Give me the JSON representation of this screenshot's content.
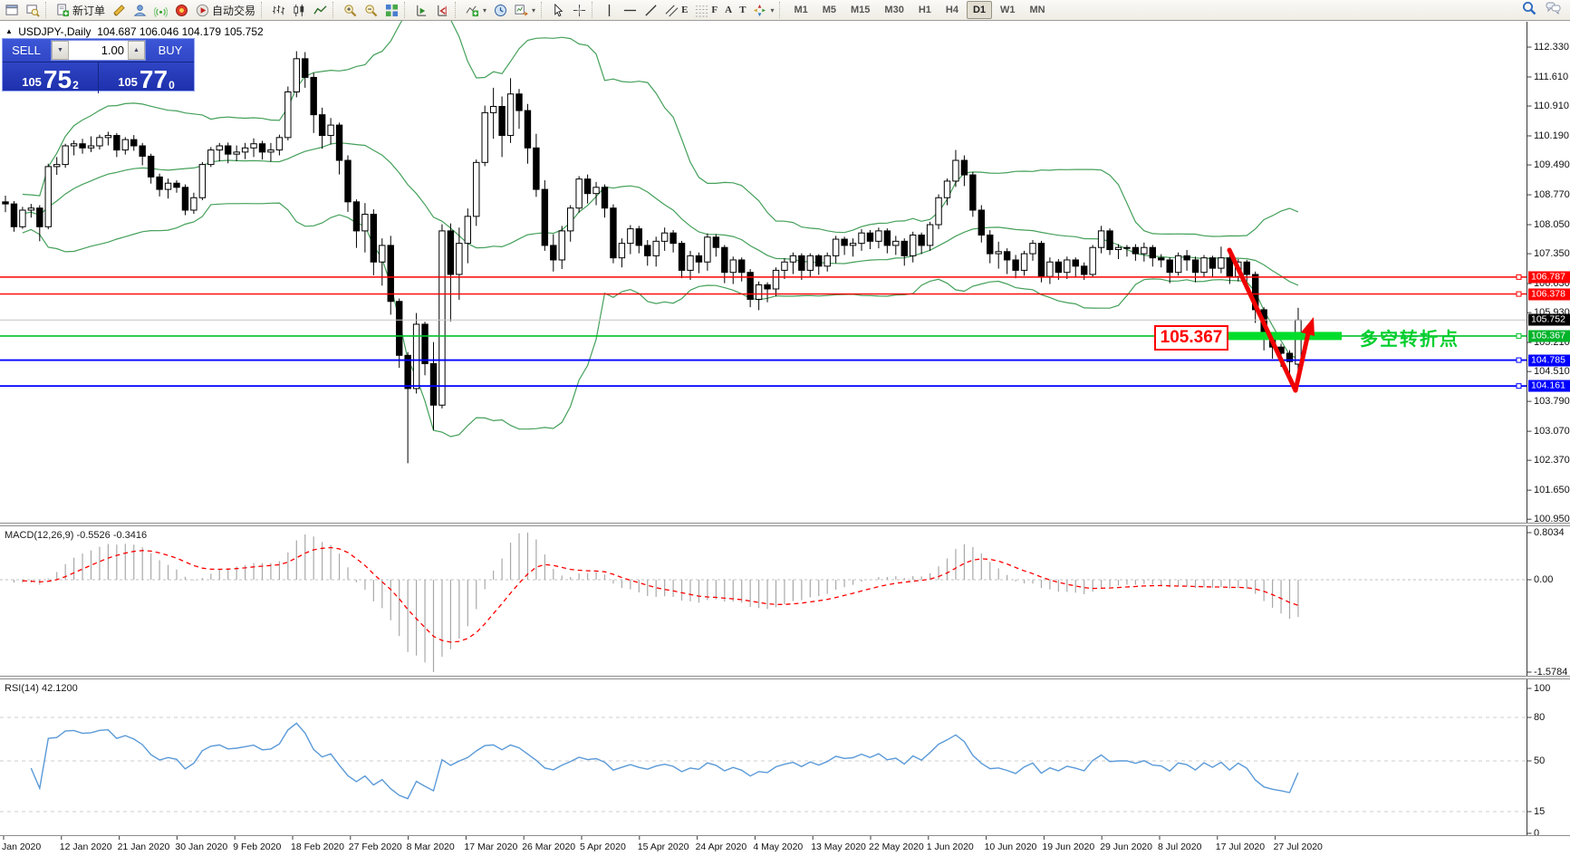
{
  "toolbar": {
    "new_order_label": "新订单",
    "autotrade_label": "自动交易",
    "glyphs": {
      "text": "A",
      "label": "T",
      "channel": "E",
      "fibo": "F"
    },
    "timeframes": [
      "M1",
      "M5",
      "M15",
      "M30",
      "H1",
      "H4",
      "D1",
      "W1",
      "MN"
    ],
    "active_timeframe": "D1"
  },
  "symbol_line": {
    "symbol": "USDJPY-,Daily",
    "ohlc": "104.687 106.046 104.179 105.752"
  },
  "trade_panel": {
    "sell_label": "SELL",
    "buy_label": "BUY",
    "volume": "1.00",
    "sell_prefix": "105",
    "sell_big": "75",
    "sell_sup": "2",
    "buy_prefix": "105",
    "buy_big": "77",
    "buy_sup": "0"
  },
  "annotations": {
    "price_box": "105.367",
    "note_text": "多空转折点"
  },
  "indicator_labels": {
    "macd": "MACD(12,26,9) -0.5526 -0.3416",
    "rsi": "RSI(14) 42.1200"
  },
  "chart_data": {
    "type": "candlestick",
    "symbol": "USDJPY",
    "timeframe": "Daily",
    "current_bar": {
      "open": 104.687,
      "high": 106.046,
      "low": 104.179,
      "close": 105.752
    },
    "price_axis_ticks": [
      "112.330",
      "111.610",
      "110.910",
      "110.190",
      "109.490",
      "108.770",
      "108.050",
      "107.350",
      "106.630",
      "105.930",
      "105.210",
      "104.510",
      "103.790",
      "103.070",
      "102.370",
      "101.650",
      "100.950"
    ],
    "last_price": 105.752,
    "hlines": [
      {
        "price": 106.787,
        "color": "#ff0000",
        "label": "106.787",
        "width": 1.4
      },
      {
        "price": 106.378,
        "color": "#ff0000",
        "label": "106.378",
        "width": 1.4
      },
      {
        "price": 105.367,
        "color": "#00c32b",
        "label": "105.367",
        "width": 1.6
      },
      {
        "price": 104.785,
        "color": "#0000ff",
        "label": "104.785",
        "width": 1.8
      },
      {
        "price": 104.161,
        "color": "#0000ff",
        "label": "104.161",
        "width": 1.8
      }
    ],
    "bollinger": {
      "period": 20,
      "deviation": 2,
      "color": "#44a05a"
    },
    "macd": {
      "params": "12,26,9",
      "value": -0.5526,
      "signal": -0.3416,
      "axis_ticks": [
        "0.8034",
        "0.00",
        "-1.5784"
      ],
      "hist_color": "#a8a8a8",
      "signal_color": "#ff0000"
    },
    "rsi": {
      "period": 14,
      "value": 42.12,
      "axis_ticks": [
        "100",
        "80",
        "50",
        "15",
        "0"
      ],
      "levels": [
        80,
        50,
        15
      ],
      "color": "#5b9ad8"
    },
    "date_labels": [
      "Jan 2020",
      "12 Jan 2020",
      "21 Jan 2020",
      "30 Jan 2020",
      "9 Feb 2020",
      "18 Feb 2020",
      "27 Feb 2020",
      "8 Mar 2020",
      "17 Mar 2020",
      "26 Mar 2020",
      "5 Apr 2020",
      "15 Apr 2020",
      "24 Apr 2020",
      "4 May 2020",
      "13 May 2020",
      "22 May 2020",
      "1 Jun 2020",
      "10 Jun 2020",
      "19 Jun 2020",
      "29 Jun 2020",
      "8 Jul 2020",
      "17 Jul 2020",
      "27 Jul 2020"
    ],
    "candles": [
      [
        108.6,
        108.75,
        108.35,
        108.55
      ],
      [
        108.55,
        108.62,
        107.88,
        108.0
      ],
      [
        108.0,
        108.48,
        107.95,
        108.4
      ],
      [
        108.4,
        108.55,
        108.22,
        108.45
      ],
      [
        108.45,
        108.52,
        107.65,
        108.0
      ],
      [
        108.0,
        109.52,
        107.94,
        109.45
      ],
      [
        109.45,
        109.68,
        109.25,
        109.5
      ],
      [
        109.5,
        110.0,
        109.42,
        109.95
      ],
      [
        109.95,
        110.08,
        109.72,
        110.0
      ],
      [
        110.0,
        110.12,
        109.76,
        109.9
      ],
      [
        109.9,
        110.18,
        109.8,
        109.95
      ],
      [
        109.95,
        110.22,
        109.86,
        110.15
      ],
      [
        110.15,
        110.29,
        109.96,
        110.2
      ],
      [
        110.2,
        110.26,
        109.68,
        109.85
      ],
      [
        109.85,
        110.16,
        109.74,
        110.1
      ],
      [
        110.1,
        110.21,
        109.83,
        109.95
      ],
      [
        109.95,
        110.02,
        109.48,
        109.7
      ],
      [
        109.7,
        109.76,
        109.04,
        109.2
      ],
      [
        109.2,
        109.28,
        108.73,
        108.9
      ],
      [
        108.9,
        109.16,
        108.68,
        109.05
      ],
      [
        109.05,
        109.12,
        108.82,
        108.95
      ],
      [
        108.95,
        109.02,
        108.28,
        108.4
      ],
      [
        108.4,
        108.82,
        108.31,
        108.7
      ],
      [
        108.7,
        109.56,
        108.64,
        109.5
      ],
      [
        109.5,
        109.92,
        109.44,
        109.85
      ],
      [
        109.85,
        110.02,
        109.58,
        109.95
      ],
      [
        109.95,
        110.03,
        109.53,
        109.75
      ],
      [
        109.75,
        109.96,
        109.58,
        109.8
      ],
      [
        109.8,
        110.02,
        109.63,
        109.9
      ],
      [
        109.9,
        110.13,
        109.68,
        110.0
      ],
      [
        110.0,
        110.07,
        109.62,
        109.8
      ],
      [
        109.8,
        110.02,
        109.57,
        109.85
      ],
      [
        109.85,
        110.22,
        109.72,
        110.15
      ],
      [
        110.15,
        111.38,
        110.08,
        111.25
      ],
      [
        111.25,
        112.23,
        111.12,
        112.05
      ],
      [
        112.05,
        112.21,
        111.35,
        111.6
      ],
      [
        111.6,
        111.71,
        110.26,
        110.7
      ],
      [
        110.7,
        110.87,
        109.88,
        110.2
      ],
      [
        110.2,
        110.62,
        109.98,
        110.45
      ],
      [
        110.45,
        110.51,
        109.26,
        109.6
      ],
      [
        109.6,
        109.72,
        108.36,
        108.6
      ],
      [
        108.6,
        108.66,
        107.49,
        107.9
      ],
      [
        107.9,
        108.57,
        107.38,
        108.3
      ],
      [
        108.3,
        108.42,
        106.83,
        107.15
      ],
      [
        107.15,
        107.72,
        106.58,
        107.55
      ],
      [
        107.55,
        107.78,
        105.88,
        106.2
      ],
      [
        106.2,
        106.27,
        104.6,
        104.9
      ],
      [
        104.9,
        104.98,
        102.3,
        104.1
      ],
      [
        104.1,
        105.92,
        103.98,
        105.65
      ],
      [
        105.65,
        105.71,
        104.42,
        104.7
      ],
      [
        104.7,
        105.22,
        103.1,
        103.7
      ],
      [
        103.7,
        108.06,
        103.62,
        107.9
      ],
      [
        107.9,
        108.08,
        105.72,
        106.85
      ],
      [
        106.85,
        107.98,
        106.24,
        107.6
      ],
      [
        107.6,
        108.44,
        107.12,
        108.25
      ],
      [
        108.25,
        109.62,
        108.02,
        109.55
      ],
      [
        109.55,
        110.92,
        109.46,
        110.75
      ],
      [
        110.75,
        111.35,
        110.12,
        110.9
      ],
      [
        110.9,
        111.14,
        109.68,
        110.2
      ],
      [
        110.2,
        111.58,
        110.02,
        111.2
      ],
      [
        111.2,
        111.32,
        110.36,
        110.8
      ],
      [
        110.8,
        110.96,
        109.52,
        109.9
      ],
      [
        109.9,
        110.24,
        108.72,
        108.9
      ],
      [
        108.9,
        109.12,
        107.42,
        107.55
      ],
      [
        107.55,
        107.82,
        106.92,
        107.2
      ],
      [
        107.2,
        108.02,
        106.98,
        107.9
      ],
      [
        107.9,
        108.52,
        107.64,
        108.45
      ],
      [
        108.45,
        109.22,
        108.34,
        109.15
      ],
      [
        109.15,
        109.26,
        108.56,
        108.8
      ],
      [
        108.8,
        109.08,
        108.52,
        108.95
      ],
      [
        108.95,
        109.02,
        108.22,
        108.45
      ],
      [
        108.45,
        108.54,
        107.12,
        107.25
      ],
      [
        107.25,
        107.72,
        107.02,
        107.6
      ],
      [
        107.6,
        108.04,
        107.34,
        107.95
      ],
      [
        107.95,
        108.02,
        107.36,
        107.55
      ],
      [
        107.55,
        107.68,
        107.06,
        107.3
      ],
      [
        107.3,
        107.76,
        107.04,
        107.65
      ],
      [
        107.65,
        107.98,
        107.42,
        107.85
      ],
      [
        107.85,
        107.92,
        107.38,
        107.6
      ],
      [
        107.6,
        107.66,
        106.76,
        106.95
      ],
      [
        106.95,
        107.42,
        106.72,
        107.3
      ],
      [
        107.3,
        107.38,
        106.88,
        107.15
      ],
      [
        107.15,
        107.84,
        106.94,
        107.75
      ],
      [
        107.75,
        107.82,
        107.28,
        107.5
      ],
      [
        107.5,
        107.56,
        106.64,
        106.9
      ],
      [
        106.9,
        107.28,
        106.62,
        107.2
      ],
      [
        107.2,
        107.26,
        106.68,
        106.9
      ],
      [
        106.9,
        106.98,
        106.06,
        106.25
      ],
      [
        106.25,
        106.68,
        105.99,
        106.6
      ],
      [
        106.6,
        106.66,
        106.18,
        106.5
      ],
      [
        106.5,
        107.02,
        106.32,
        106.95
      ],
      [
        106.95,
        107.24,
        106.74,
        107.15
      ],
      [
        107.15,
        107.38,
        106.86,
        107.3
      ],
      [
        107.3,
        107.36,
        106.72,
        106.95
      ],
      [
        106.95,
        107.36,
        106.78,
        107.3
      ],
      [
        107.3,
        107.34,
        106.84,
        107.05
      ],
      [
        107.05,
        107.38,
        106.92,
        107.3
      ],
      [
        107.3,
        107.78,
        107.12,
        107.7
      ],
      [
        107.7,
        107.76,
        107.32,
        107.55
      ],
      [
        107.55,
        107.72,
        107.28,
        107.6
      ],
      [
        107.6,
        107.94,
        107.42,
        107.85
      ],
      [
        107.85,
        107.92,
        107.46,
        107.65
      ],
      [
        107.65,
        107.98,
        107.48,
        107.9
      ],
      [
        107.9,
        107.96,
        107.36,
        107.55
      ],
      [
        107.55,
        107.78,
        107.32,
        107.65
      ],
      [
        107.65,
        107.72,
        107.06,
        107.3
      ],
      [
        107.3,
        107.88,
        107.14,
        107.8
      ],
      [
        107.8,
        107.86,
        107.34,
        107.55
      ],
      [
        107.55,
        108.12,
        107.42,
        108.05
      ],
      [
        108.05,
        108.78,
        107.94,
        108.7
      ],
      [
        108.7,
        109.16,
        108.52,
        109.1
      ],
      [
        109.1,
        109.85,
        108.96,
        109.6
      ],
      [
        109.6,
        109.72,
        108.98,
        109.25
      ],
      [
        109.25,
        109.32,
        108.24,
        108.4
      ],
      [
        108.4,
        108.52,
        107.62,
        107.8
      ],
      [
        107.8,
        107.92,
        107.12,
        107.35
      ],
      [
        107.35,
        107.64,
        106.99,
        107.4
      ],
      [
        107.4,
        107.48,
        106.86,
        107.2
      ],
      [
        107.2,
        107.32,
        106.76,
        106.95
      ],
      [
        106.95,
        107.42,
        106.82,
        107.35
      ],
      [
        107.35,
        107.68,
        107.18,
        107.6
      ],
      [
        107.6,
        107.66,
        106.66,
        106.8
      ],
      [
        106.8,
        107.26,
        106.62,
        107.15
      ],
      [
        107.15,
        107.22,
        106.72,
        106.9
      ],
      [
        106.9,
        107.28,
        106.74,
        107.2
      ],
      [
        107.2,
        107.26,
        106.78,
        107.05
      ],
      [
        107.05,
        107.14,
        106.72,
        106.85
      ],
      [
        106.85,
        107.56,
        106.78,
        107.5
      ],
      [
        107.5,
        108.02,
        107.36,
        107.9
      ],
      [
        107.9,
        107.96,
        107.32,
        107.45
      ],
      [
        107.45,
        107.58,
        107.22,
        107.5
      ],
      [
        107.5,
        107.56,
        107.28,
        107.5
      ],
      [
        107.5,
        107.58,
        107.18,
        107.35
      ],
      [
        107.35,
        107.62,
        107.16,
        107.5
      ],
      [
        107.5,
        107.56,
        107.04,
        107.25
      ],
      [
        107.25,
        107.34,
        107.02,
        107.2
      ],
      [
        107.2,
        107.26,
        106.64,
        106.9
      ],
      [
        106.9,
        107.38,
        106.82,
        107.3
      ],
      [
        107.3,
        107.44,
        106.94,
        107.2
      ],
      [
        107.2,
        107.28,
        106.66,
        106.9
      ],
      [
        106.9,
        107.32,
        106.78,
        107.25
      ],
      [
        107.25,
        107.3,
        106.78,
        107.0
      ],
      [
        107.0,
        107.52,
        106.88,
        107.25
      ],
      [
        107.25,
        107.32,
        106.62,
        106.8
      ],
      [
        106.8,
        107.22,
        106.68,
        107.15
      ],
      [
        107.15,
        107.2,
        106.68,
        106.85
      ],
      [
        106.85,
        106.92,
        105.68,
        106.0
      ],
      [
        106.0,
        106.06,
        105.02,
        105.35
      ],
      [
        105.35,
        105.42,
        104.82,
        105.1
      ],
      [
        105.1,
        105.18,
        104.62,
        104.95
      ],
      [
        104.95,
        105.02,
        104.42,
        104.75
      ],
      [
        104.687,
        106.046,
        104.179,
        105.752
      ]
    ]
  }
}
